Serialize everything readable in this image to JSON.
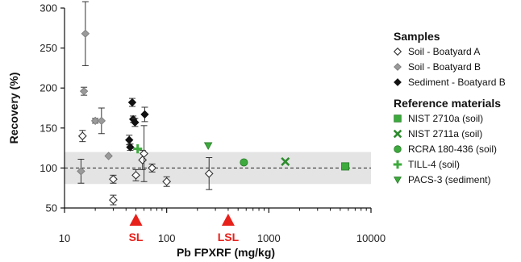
{
  "chart_data": {
    "type": "scatter",
    "title": "",
    "xlabel": "Pb FPXRF (mg/kg)",
    "ylabel": "Recovery (%)",
    "xscale": "log",
    "xlim": [
      10,
      10000
    ],
    "ylim": [
      50,
      300
    ],
    "x_ticks": [
      10,
      100,
      1000,
      10000
    ],
    "x_tick_labels": [
      "10",
      "100",
      "1000",
      "10000"
    ],
    "y_ticks": [
      50,
      100,
      150,
      200,
      250,
      300
    ],
    "y_tick_labels": [
      "50",
      "100",
      "150",
      "200",
      "250",
      "300"
    ],
    "grid": false,
    "acceptance_band": [
      80,
      120
    ],
    "reference_line": 100,
    "legend_position": "right",
    "legend_groups": [
      {
        "title": "Samples",
        "items": [
          "Soil - Boatyard A",
          "Soil - Boatyard B",
          "Sediment - Boatyard B"
        ]
      },
      {
        "title": "Reference materials",
        "items": [
          "NIST 2710a (soil)",
          "NIST 2711a (soil)",
          "RCRA 180-436 (soil)",
          "TILL-4 (soil)",
          "PACS-3 (sediment)"
        ]
      }
    ],
    "thresholds": [
      {
        "label": "SL",
        "x": 50,
        "color": "#e8201a"
      },
      {
        "label": "LSL",
        "x": 400,
        "color": "#e8201a"
      }
    ],
    "series": [
      {
        "name": "Soil - Boatyard A",
        "marker": "diamond-open",
        "color": "#333333",
        "points": [
          {
            "x": 15,
            "y": 140,
            "err": 7
          },
          {
            "x": 30,
            "y": 86,
            "err": 5
          },
          {
            "x": 30,
            "y": 60,
            "err": 6
          },
          {
            "x": 50,
            "y": 91,
            "err": 7
          },
          {
            "x": 58,
            "y": 110,
            "err": 12
          },
          {
            "x": 60,
            "y": 118,
            "err": 35
          },
          {
            "x": 72,
            "y": 100,
            "err": 5
          },
          {
            "x": 100,
            "y": 83,
            "err": 6
          },
          {
            "x": 260,
            "y": 93,
            "err": 20
          }
        ]
      },
      {
        "name": "Soil - Boatyard B",
        "marker": "diamond-filled",
        "color": "#9a9a9a",
        "points": [
          {
            "x": 14.5,
            "y": 96,
            "err": 15
          },
          {
            "x": 15.5,
            "y": 196,
            "err": 5
          },
          {
            "x": 16,
            "y": 268,
            "err": 40
          },
          {
            "x": 20,
            "y": 159,
            "err": 3
          },
          {
            "x": 23,
            "y": 159,
            "err": 16
          },
          {
            "x": 27,
            "y": 115,
            "err": 0
          }
        ]
      },
      {
        "name": "Sediment - Boatyard B",
        "marker": "diamond-filled",
        "color": "#111111",
        "points": [
          {
            "x": 43,
            "y": 135,
            "err": 6
          },
          {
            "x": 44,
            "y": 126,
            "err": 4
          },
          {
            "x": 46,
            "y": 182,
            "err": 5
          },
          {
            "x": 47,
            "y": 161,
            "err": 4
          },
          {
            "x": 49,
            "y": 157,
            "err": 5
          },
          {
            "x": 61,
            "y": 167,
            "err": 9
          }
        ]
      },
      {
        "name": "NIST 2710a (soil)",
        "marker": "square",
        "color": "#3daa3d",
        "points": [
          {
            "x": 5600,
            "y": 102
          }
        ]
      },
      {
        "name": "NIST 2711a (soil)",
        "marker": "x",
        "color": "#2e8b2e",
        "points": [
          {
            "x": 1450,
            "y": 108
          }
        ]
      },
      {
        "name": "RCRA 180-436 (soil)",
        "marker": "circle",
        "color": "#3daa3d",
        "points": [
          {
            "x": 570,
            "y": 107
          }
        ]
      },
      {
        "name": "TILL-4 (soil)",
        "marker": "plus",
        "color": "#3daa3d",
        "points": [
          {
            "x": 52,
            "y": 124
          }
        ]
      },
      {
        "name": "PACS-3 (sediment)",
        "marker": "triangle-down",
        "color": "#3daa3d",
        "points": [
          {
            "x": 255,
            "y": 128
          }
        ]
      }
    ]
  }
}
